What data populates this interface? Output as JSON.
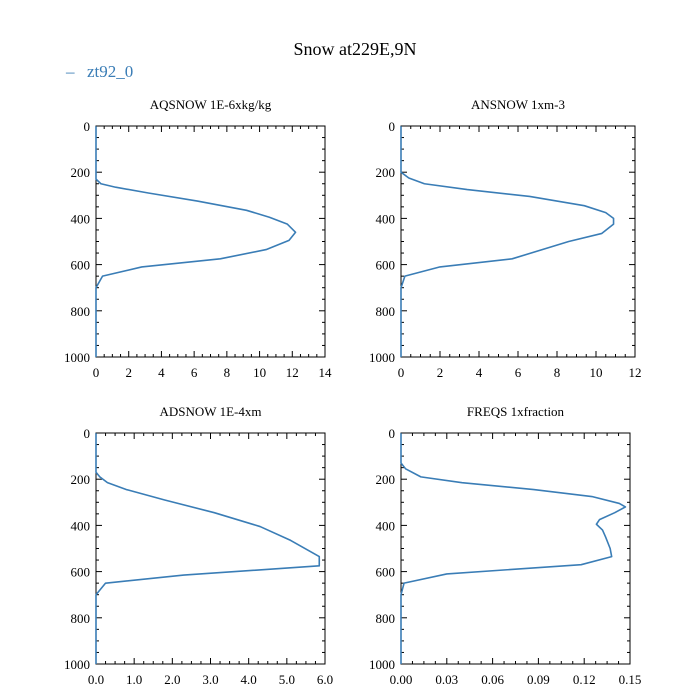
{
  "figure": {
    "title": "Snow at229E,9N",
    "legend": {
      "label": "zt92_0",
      "color": "#3a7db6"
    }
  },
  "chart_data": [
    {
      "type": "line",
      "title": "AQSNOW  1E-6xkg/kg",
      "xlim": [
        0,
        14
      ],
      "ylim": [
        1000,
        0
      ],
      "xticks": [
        0,
        2,
        4,
        6,
        8,
        10,
        12,
        14
      ],
      "xtick_labels": [
        "0",
        "2",
        "4",
        "6",
        "8",
        "10",
        "12",
        "14"
      ],
      "yticks": [
        0,
        200,
        400,
        600,
        800,
        1000
      ],
      "ytick_labels": [
        "0",
        "200",
        "400",
        "600",
        "800",
        "1000"
      ],
      "series": [
        {
          "name": "zt92_0",
          "color": "#3a7db6",
          "x": [
            0,
            0,
            0,
            0,
            0,
            0.3,
            1.2,
            3.2,
            6.2,
            9.2,
            10.6,
            11.7,
            12.2,
            11.8,
            10.4,
            7.6,
            2.8,
            0.4,
            0,
            0,
            0,
            0
          ],
          "y": [
            1,
            70,
            150,
            200,
            230,
            250,
            265,
            290,
            325,
            365,
            395,
            425,
            460,
            495,
            535,
            575,
            610,
            650,
            700,
            800,
            900,
            1000
          ]
        }
      ]
    },
    {
      "type": "line",
      "title": "ANSNOW  1xm-3",
      "xlim": [
        0,
        12
      ],
      "ylim": [
        1000,
        0
      ],
      "xticks": [
        0,
        2,
        4,
        6,
        8,
        10,
        12
      ],
      "xtick_labels": [
        "0",
        "2",
        "4",
        "6",
        "8",
        "10",
        "12"
      ],
      "yticks": [
        0,
        200,
        400,
        600,
        800,
        1000
      ],
      "ytick_labels": [
        "0",
        "200",
        "400",
        "600",
        "800",
        "1000"
      ],
      "series": [
        {
          "name": "zt92_0",
          "color": "#3a7db6",
          "x": [
            0,
            0,
            0,
            0,
            0,
            0.4,
            1.2,
            3.4,
            6.6,
            9.4,
            10.5,
            10.9,
            10.9,
            10.3,
            8.6,
            5.7,
            2.0,
            0.2,
            0,
            0,
            0,
            0
          ],
          "y": [
            1,
            70,
            150,
            190,
            200,
            225,
            250,
            275,
            305,
            345,
            375,
            400,
            425,
            465,
            500,
            575,
            610,
            650,
            700,
            800,
            900,
            1000
          ]
        }
      ]
    },
    {
      "type": "line",
      "title": "ADSNOW  1E-4xm",
      "xlim": [
        0,
        6
      ],
      "ylim": [
        1000,
        0
      ],
      "xticks": [
        0,
        1,
        2,
        3,
        4,
        5,
        6
      ],
      "xtick_labels": [
        "0.0",
        "1.0",
        "2.0",
        "3.0",
        "4.0",
        "5.0",
        "6.0"
      ],
      "yticks": [
        0,
        200,
        400,
        600,
        800,
        1000
      ],
      "ytick_labels": [
        "0",
        "200",
        "400",
        "600",
        "800",
        "1000"
      ],
      "series": [
        {
          "name": "zt92_0",
          "color": "#3a7db6",
          "x": [
            0,
            0,
            0,
            0,
            0,
            0.1,
            0.3,
            0.8,
            1.8,
            3.1,
            4.3,
            5.1,
            5.85,
            5.85,
            2.3,
            0.25,
            0,
            0,
            0,
            0
          ],
          "y": [
            1,
            70,
            120,
            150,
            170,
            190,
            215,
            245,
            290,
            345,
            405,
            465,
            535,
            575,
            615,
            650,
            700,
            800,
            900,
            1000
          ]
        }
      ]
    },
    {
      "type": "line",
      "title": "FREQS  1xfraction",
      "xlim": [
        0,
        0.15
      ],
      "ylim": [
        1000,
        0
      ],
      "xticks": [
        0,
        0.03,
        0.06,
        0.09,
        0.12,
        0.15
      ],
      "xtick_labels": [
        "0.00",
        "0.03",
        "0.06",
        "0.09",
        "0.12",
        "0.15"
      ],
      "yticks": [
        0,
        200,
        400,
        600,
        800,
        1000
      ],
      "ytick_labels": [
        "0",
        "200",
        "400",
        "600",
        "800",
        "1000"
      ],
      "series": [
        {
          "name": "zt92_0",
          "color": "#3a7db6",
          "x": [
            0,
            0,
            0,
            0.003,
            0.013,
            0.04,
            0.087,
            0.125,
            0.143,
            0.147,
            0.14,
            0.13,
            0.128,
            0.132,
            0.134,
            0.137,
            0.138,
            0.118,
            0.03,
            0.002,
            0,
            0,
            0,
            0
          ],
          "y": [
            1,
            60,
            130,
            155,
            190,
            215,
            245,
            275,
            305,
            320,
            345,
            375,
            395,
            420,
            450,
            500,
            535,
            570,
            610,
            650,
            700,
            800,
            900,
            1000
          ]
        }
      ]
    }
  ]
}
